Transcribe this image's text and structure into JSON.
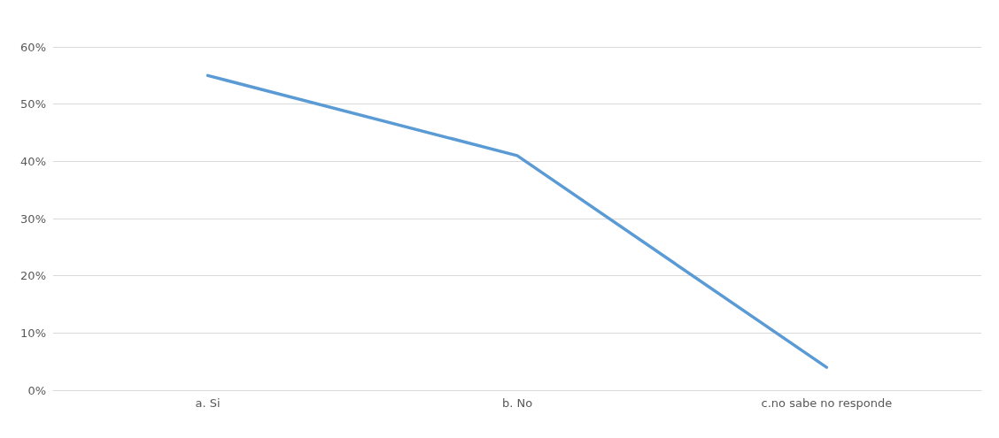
{
  "chart_data": {
    "type": "line",
    "categories": [
      "a. Si",
      "b. No",
      "c.no sabe no responde"
    ],
    "series": [
      {
        "color": "#5b9bd5",
        "values": [
          55,
          41,
          4
        ]
      }
    ],
    "ylim": [
      0,
      60
    ],
    "yticks": [
      {
        "value": 0,
        "label": "0%"
      },
      {
        "value": 10,
        "label": "10%"
      },
      {
        "value": 20,
        "label": "20%"
      },
      {
        "value": 30,
        "label": "30%"
      },
      {
        "value": 40,
        "label": "40%"
      },
      {
        "value": 50,
        "label": "50%"
      },
      {
        "value": 60,
        "label": "60%"
      }
    ],
    "grid": "y",
    "marker": "none",
    "line_style": "solid"
  }
}
